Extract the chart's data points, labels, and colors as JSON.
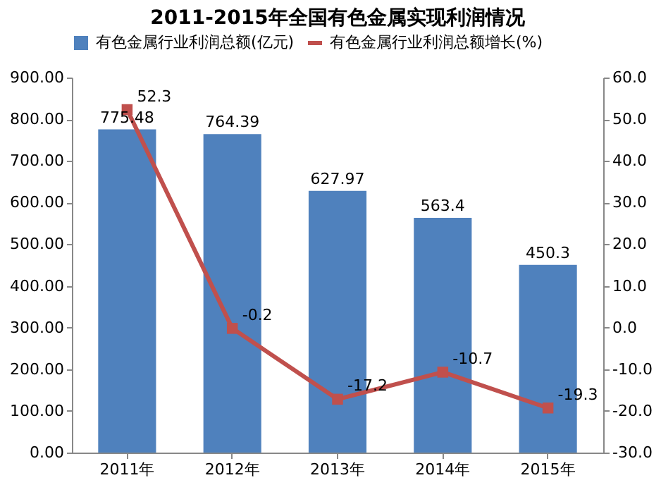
{
  "chart_data": {
    "type": "bar",
    "title": "2011-2015年全国有色金属实现利润情况",
    "categories": [
      "2011年",
      "2012年",
      "2013年",
      "2014年",
      "2015年"
    ],
    "series": [
      {
        "name": "有色金属行业利润总额(亿元)",
        "color": "#4f81bd",
        "values": [
          775.48,
          764.39,
          627.97,
          563.4,
          450.3
        ]
      },
      {
        "name": "有色金属行业利润总额增长(%)",
        "color": "#c0504d",
        "type": "line",
        "axis": "y2",
        "marker": "square",
        "values": [
          52.3,
          -0.2,
          -17.2,
          -10.7,
          -19.3
        ]
      }
    ],
    "ylim": [
      0,
      900
    ],
    "yticks": [
      {
        "value": 0,
        "label": "0.00"
      },
      {
        "value": 100,
        "label": "100.00"
      },
      {
        "value": 200,
        "label": "200.00"
      },
      {
        "value": 300,
        "label": "300.00"
      },
      {
        "value": 400,
        "label": "400.00"
      },
      {
        "value": 500,
        "label": "500.00"
      },
      {
        "value": 600,
        "label": "600.00"
      },
      {
        "value": 700,
        "label": "700.00"
      },
      {
        "value": 800,
        "label": "800.00"
      },
      {
        "value": 900,
        "label": "900.00"
      }
    ],
    "y2lim": [
      -30,
      60
    ],
    "y2ticks": [
      {
        "value": -30,
        "label": "-30.0"
      },
      {
        "value": -20,
        "label": "-20.0"
      },
      {
        "value": -10,
        "label": "-10.0"
      },
      {
        "value": 0,
        "label": "0.0"
      },
      {
        "value": 10,
        "label": "10.0"
      },
      {
        "value": 20,
        "label": "20.0"
      },
      {
        "value": 30,
        "label": "30.0"
      },
      {
        "value": 40,
        "label": "40.0"
      },
      {
        "value": 50,
        "label": "50.0"
      },
      {
        "value": 60,
        "label": "60.0"
      }
    ],
    "data_labels": true,
    "legend": "top",
    "grid": false
  }
}
